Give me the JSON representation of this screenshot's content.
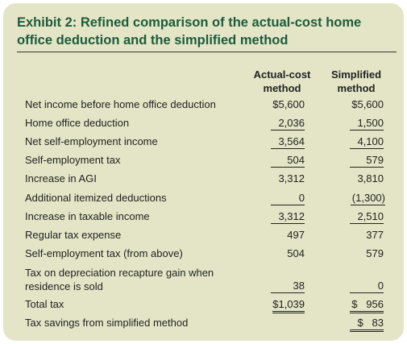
{
  "title": "Exhibit 2: Refined comparison of the actual-cost home office deduction and the simplified method",
  "columns": {
    "a_line1": "Actual-cost",
    "a_line2": "method",
    "b_line1": "Simplified",
    "b_line2": "method"
  },
  "rows": [
    {
      "label": "Net income before home office deduction",
      "a": "$5,600",
      "b": "$5,600"
    },
    {
      "label": "Home office deduction",
      "a": "2,036",
      "b": "1,500"
    },
    {
      "label": "Net self-employment income",
      "a": "3,564",
      "b": "4,100"
    },
    {
      "label": "Self-employment tax",
      "a": "504",
      "b": "579"
    },
    {
      "label": "Increase in AGI",
      "a": "3,312",
      "b": "3,810"
    },
    {
      "label": "Additional itemized deductions",
      "a": "0",
      "b": "(1,300)"
    },
    {
      "label": "Increase in taxable income",
      "a": "3,312",
      "b": "2,510"
    },
    {
      "label": "Regular tax expense",
      "a": "497",
      "b": "377"
    },
    {
      "label": "Self-employment tax (from above)",
      "a": "504",
      "b": "579"
    },
    {
      "label_line1": "Tax on depreciation recapture gain when",
      "label_line2": "residence is sold",
      "a": "38",
      "b": "0"
    },
    {
      "label": "Total tax",
      "a": "$1,039",
      "b_sym": "$",
      "b": "956"
    },
    {
      "label": "Tax savings from simplified method",
      "a": "",
      "b_sym": "$",
      "b": "83"
    }
  ]
}
